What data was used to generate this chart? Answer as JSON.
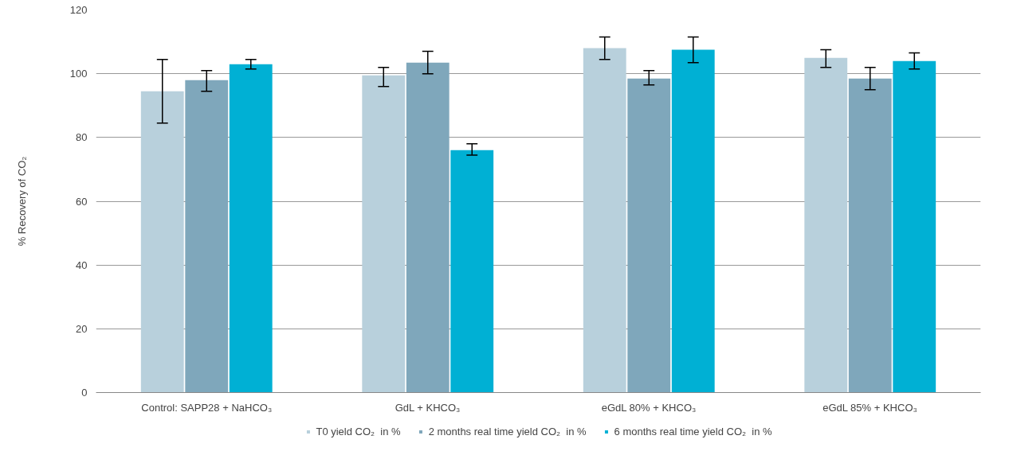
{
  "chart_data": {
    "type": "bar",
    "ylabel": "% Recovery of CO₂",
    "categories": [
      "Control: SAPP28 + NaHCO₃",
      "GdL + KHCO₃",
      "eGdL 80% + KHCO₃",
      "eGdL 85% + KHCO₃"
    ],
    "series": [
      {
        "name": "T0 yield CO₂  in %",
        "color": "#b8d0dc",
        "values": [
          94.5,
          99.5,
          108,
          105
        ],
        "errors": [
          [
            84.5,
            104.5
          ],
          [
            96,
            102
          ],
          [
            104.5,
            111.5
          ],
          [
            102,
            107.5
          ]
        ]
      },
      {
        "name": "2 months real time yield CO₂  in %",
        "color": "#7fa7bb",
        "values": [
          98,
          103.5,
          98.5,
          98.5
        ],
        "errors": [
          [
            94.5,
            101
          ],
          [
            100,
            107
          ],
          [
            96.5,
            101
          ],
          [
            95,
            102
          ]
        ]
      },
      {
        "name": "6 months real time yield CO₂  in %",
        "color": "#00b0d4",
        "values": [
          103,
          76,
          107.5,
          104
        ],
        "errors": [
          [
            101.5,
            104.5
          ],
          [
            74.5,
            78
          ],
          [
            103.5,
            111.5
          ],
          [
            101.5,
            106.5
          ]
        ]
      }
    ],
    "ylim": [
      0,
      120
    ],
    "yticks": [
      0,
      20,
      40,
      60,
      80,
      100,
      120
    ],
    "grid": "y",
    "legend": "bottom",
    "marker": "square"
  }
}
